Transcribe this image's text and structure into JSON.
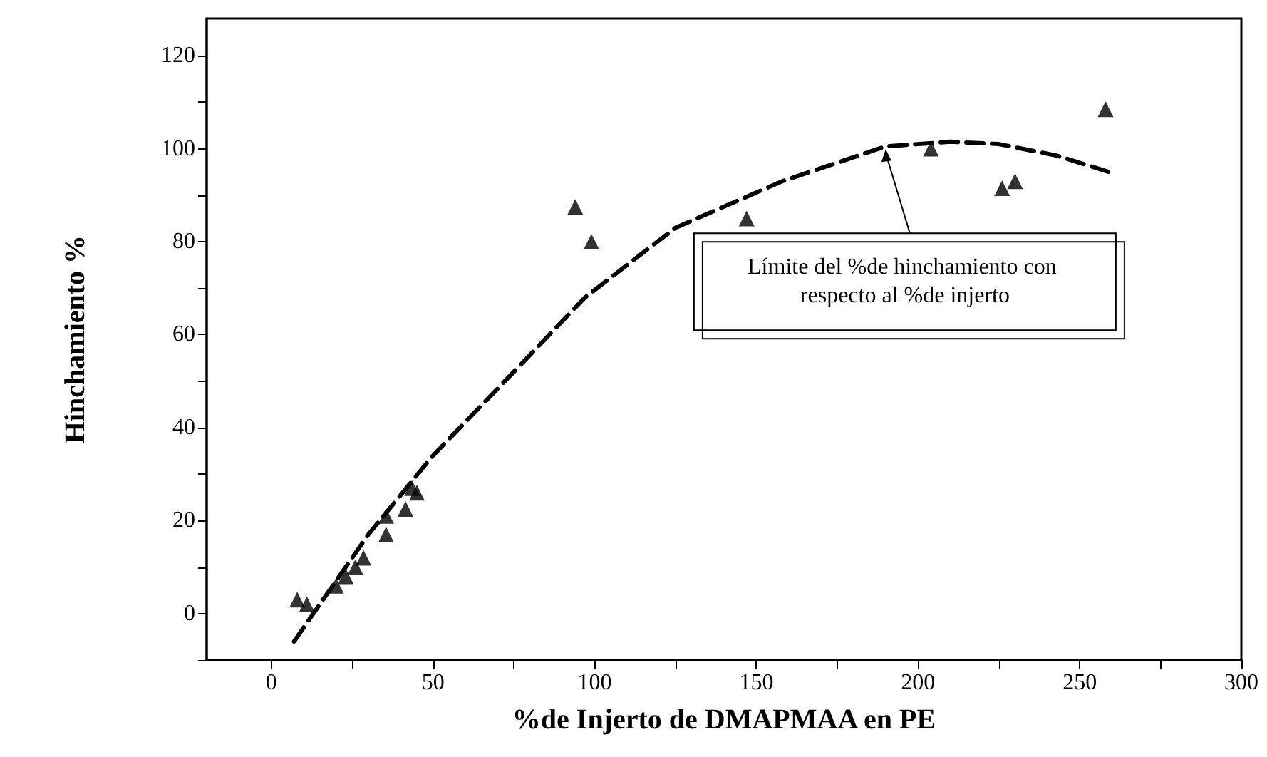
{
  "chart_data": {
    "type": "scatter",
    "xlabel": "%de Injerto de DMAPMAA en PE",
    "ylabel": "Hinchamiento %",
    "xlim": [
      -20,
      300
    ],
    "xticks": [
      0,
      {
        "value": 25,
        "label": null
      },
      50,
      {
        "value": 75,
        "label": null
      },
      100,
      {
        "value": 125,
        "label": null
      },
      150,
      {
        "value": 175,
        "label": null
      },
      200,
      {
        "value": 225,
        "label": null
      },
      250,
      {
        "value": 275,
        "label": null
      },
      300
    ],
    "ylim": [
      -10,
      128
    ],
    "yticks": [
      {
        "value": -10,
        "label": null
      },
      0,
      {
        "value": 10,
        "label": null
      },
      20,
      {
        "value": 30,
        "label": null
      },
      40,
      {
        "value": 50,
        "label": null
      },
      60,
      {
        "value": 70,
        "label": null
      },
      80,
      {
        "value": 90,
        "label": null
      },
      100,
      {
        "value": 110,
        "label": null
      },
      120
    ],
    "marker": "triangle",
    "series": [
      {
        "color": "#000000",
        "x": [
          8,
          11,
          20,
          23,
          26,
          28.5,
          35.5,
          35.5,
          41.5,
          43.5,
          45,
          94,
          99,
          147,
          204,
          226,
          230,
          258
        ],
        "values": [
          3,
          2,
          6,
          8,
          10,
          12,
          17,
          21,
          22.5,
          27,
          26,
          87.5,
          80,
          85,
          100,
          91.5,
          93,
          108.5
        ]
      },
      {
        "type": "line",
        "marker": "none",
        "line_style": "dashed",
        "color": "#000000",
        "x": [
          7,
          13,
          30,
          50,
          75,
          97,
          125,
          158,
          190,
          210,
          225,
          243,
          259
        ],
        "values": [
          -6,
          0,
          17,
          34,
          52,
          68,
          83,
          93,
          100.5,
          101.5,
          101,
          98.5,
          95
        ]
      }
    ],
    "annotations": [
      {
        "text": "Límite del %de hinchamiento con respecto al %de injerto",
        "x": 190,
        "y": 100.5
      }
    ]
  }
}
